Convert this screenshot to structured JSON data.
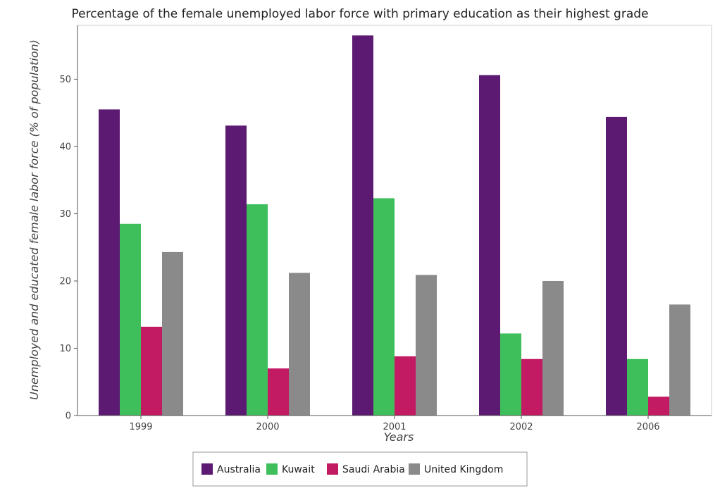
{
  "chart_data": {
    "type": "bar",
    "title": "Percentage of the female unemployed labor force with primary education as their highest grade",
    "xlabel": "Years",
    "ylabel": "Unemployed and educated female labor force (% of population)",
    "categories": [
      "1999",
      "2000",
      "2001",
      "2002",
      "2006"
    ],
    "ylim": [
      0,
      58
    ],
    "yticks": [
      0,
      10,
      20,
      30,
      40,
      50
    ],
    "grid": false,
    "legend_position": "bottom",
    "series": [
      {
        "name": "Australia",
        "color": "#5c1a73",
        "values": [
          45.5,
          43.1,
          56.5,
          50.6,
          44.4
        ]
      },
      {
        "name": "Kuwait",
        "color": "#3fbf5b",
        "values": [
          28.5,
          31.4,
          32.3,
          12.2,
          8.4
        ]
      },
      {
        "name": "Saudi Arabia",
        "color": "#c21a63",
        "values": [
          13.2,
          7.0,
          8.8,
          8.4,
          2.8
        ]
      },
      {
        "name": "United Kingdom",
        "color": "#8a8a8a",
        "values": [
          24.3,
          21.2,
          20.9,
          20.0,
          16.5
        ]
      }
    ]
  }
}
